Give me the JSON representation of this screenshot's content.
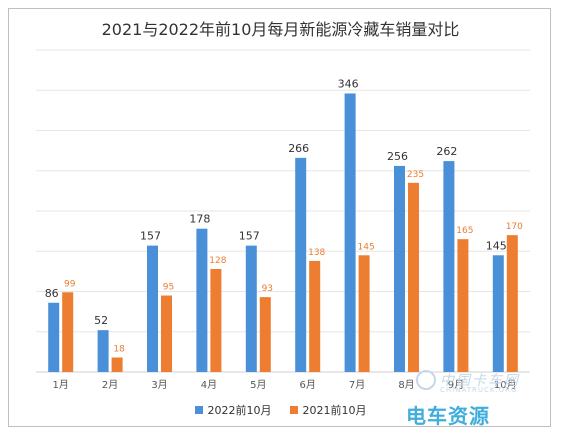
{
  "chart_data": {
    "type": "bar",
    "title": "2021与2022年前10月每月新能源冷藏车销量对比",
    "categories": [
      "1月",
      "2月",
      "3月",
      "4月",
      "5月",
      "6月",
      "7月",
      "8月",
      "9月",
      "10月"
    ],
    "series": [
      {
        "name": "2022前10月",
        "color": "#4a90d9",
        "values": [
          86,
          52,
          157,
          178,
          157,
          266,
          346,
          256,
          262,
          145
        ]
      },
      {
        "name": "2021前10月",
        "color": "#ed7d31",
        "values": [
          99,
          18,
          95,
          128,
          93,
          138,
          145,
          235,
          165,
          170
        ]
      }
    ],
    "ylim": [
      0,
      400
    ],
    "grid": true,
    "legend": "bottom"
  },
  "watermark": {
    "line1": "中国卡车网",
    "line2": "CHINATRUCK.ORG",
    "line3": "电车资源"
  }
}
